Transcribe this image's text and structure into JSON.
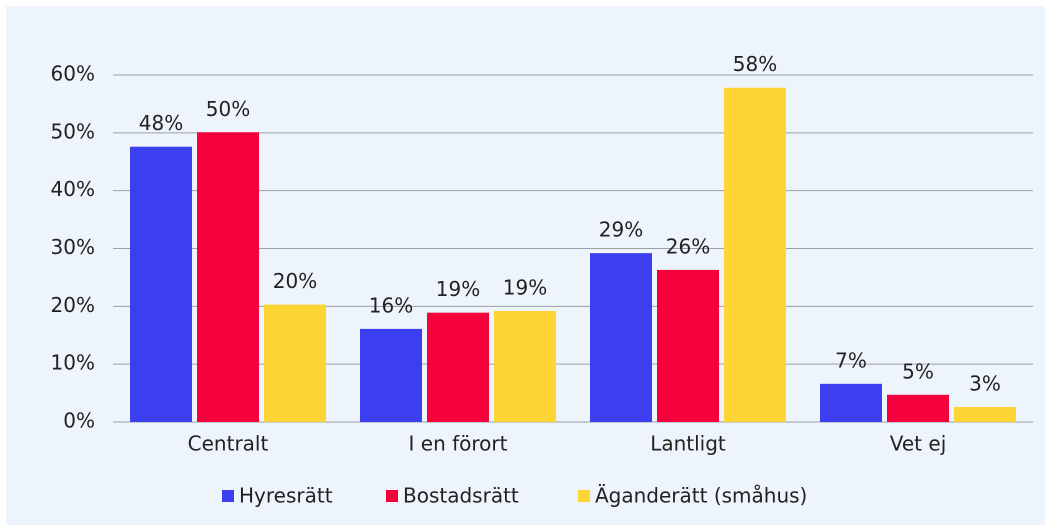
{
  "chart_data": {
    "type": "bar",
    "categories": [
      "Centralt",
      "I en förort",
      "Lantligt",
      "Vet ej"
    ],
    "series": [
      {
        "name": "Hyresrätt",
        "color": "#3b3ff0",
        "values": [
          47.6,
          16.1,
          29.2,
          6.6
        ],
        "value_labels": [
          "48%",
          "16%",
          "29%",
          "7%"
        ]
      },
      {
        "name": "Bostadsrätt",
        "color": "#f4003a",
        "values": [
          50.1,
          18.9,
          26.3,
          4.7
        ],
        "value_labels": [
          "50%",
          "19%",
          "26%",
          "5%"
        ]
      },
      {
        "name": "Äganderätt (småhus)",
        "color": "#fdd535",
        "values": [
          20.3,
          19.2,
          57.8,
          2.6
        ],
        "value_labels": [
          "20%",
          "19%",
          "58%",
          "3%"
        ]
      }
    ],
    "ylim": [
      0,
      60
    ],
    "yticks": [
      {
        "value": 0,
        "label": "0%"
      },
      {
        "value": 10,
        "label": "10%"
      },
      {
        "value": 20,
        "label": "20%"
      },
      {
        "value": 30,
        "label": "30%"
      },
      {
        "value": 40,
        "label": "40%"
      },
      {
        "value": 50,
        "label": "50%"
      },
      {
        "value": 60,
        "label": "60%"
      }
    ],
    "grid": true,
    "legend": "bottom"
  }
}
